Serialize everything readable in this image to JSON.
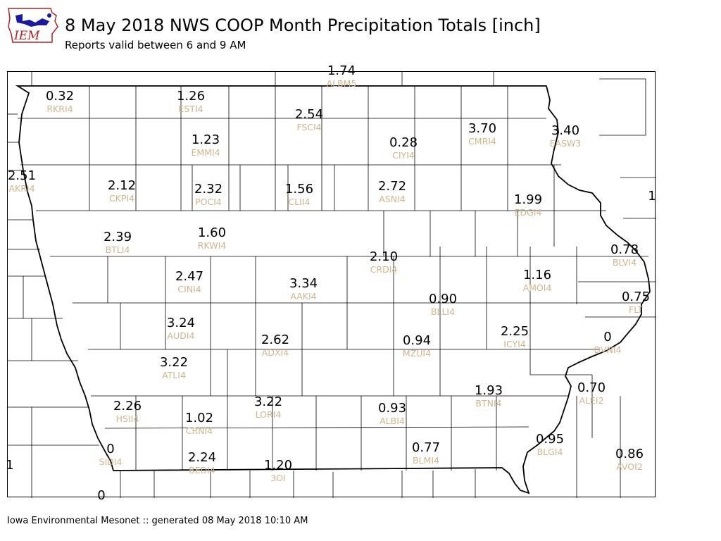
{
  "header": {
    "logo_text": "IEM",
    "title": "8 May 2018 NWS COOP Month Precipitation Totals [inch]",
    "subtitle": "Reports valid between 6 and 9 AM"
  },
  "footer": {
    "text": "Iowa Environmental Mesonet :: generated 08 May 2018 10:10 AM"
  },
  "colors": {
    "value_text": "#000000",
    "station_text": "#d2b48c",
    "logo_red": "#b22222",
    "logo_blue": "#1a1aa0"
  },
  "stations": [
    {
      "value": "1.74",
      "id": "ALBM5"
    },
    {
      "value": "0.32",
      "id": "RKRI4"
    },
    {
      "value": "1.26",
      "id": "ESTI4"
    },
    {
      "value": "2.54",
      "id": "FSCI4"
    },
    {
      "value": "3.70",
      "id": "CMRI4"
    },
    {
      "value": "3.40",
      "id": "EASW3"
    },
    {
      "value": "1.23",
      "id": "EMMI4"
    },
    {
      "value": "0.28",
      "id": "CIYI4"
    },
    {
      "value": "2.51",
      "id": "AKRI4"
    },
    {
      "value": "2.12",
      "id": "CKPI4"
    },
    {
      "value": "2.32",
      "id": "POCI4"
    },
    {
      "value": "1.56",
      "id": "CLII4"
    },
    {
      "value": "2.72",
      "id": "ASNI4"
    },
    {
      "value": "1.99",
      "id": "EDGI4"
    },
    {
      "value": "2.39",
      "id": "BTLI4"
    },
    {
      "value": "1.60",
      "id": "RKWI4"
    },
    {
      "value": "0.78",
      "id": "BLVI4"
    },
    {
      "value": "2.10",
      "id": "CRDI4"
    },
    {
      "value": "2.47",
      "id": "CINI4"
    },
    {
      "value": "3.34",
      "id": "AAKI4"
    },
    {
      "value": "1.16",
      "id": "AMOI4"
    },
    {
      "value": "0.75",
      "id": "FLT"
    },
    {
      "value": "0.90",
      "id": "BLLI4"
    },
    {
      "value": "3.24",
      "id": "AUDI4"
    },
    {
      "value": "2.62",
      "id": "ADXI4"
    },
    {
      "value": "2.25",
      "id": "ICYI4"
    },
    {
      "value": "0",
      "id": "DVNI4"
    },
    {
      "value": "0.94",
      "id": "MZUI4"
    },
    {
      "value": "3.22",
      "id": "ATLI4"
    },
    {
      "value": "1.93",
      "id": "BTNI4"
    },
    {
      "value": "0.70",
      "id": "ALEI2"
    },
    {
      "value": "2.26",
      "id": "HSII4"
    },
    {
      "value": "1.02",
      "id": "CRNI4"
    },
    {
      "value": "3.22",
      "id": "LORI4"
    },
    {
      "value": "0.93",
      "id": "ALBI4"
    },
    {
      "value": "0",
      "id": "SIDI4"
    },
    {
      "value": "0.77",
      "id": "BLMI4"
    },
    {
      "value": "0.95",
      "id": "BLGI4"
    },
    {
      "value": "0.86",
      "id": "AVOI2"
    },
    {
      "value": "2.24",
      "id": "BEDI4"
    },
    {
      "value": "1.20",
      "id": "3OI"
    },
    {
      "value": "1",
      "id": ""
    },
    {
      "value": "1",
      "id": ""
    },
    {
      "value": "0",
      "id": ""
    }
  ]
}
